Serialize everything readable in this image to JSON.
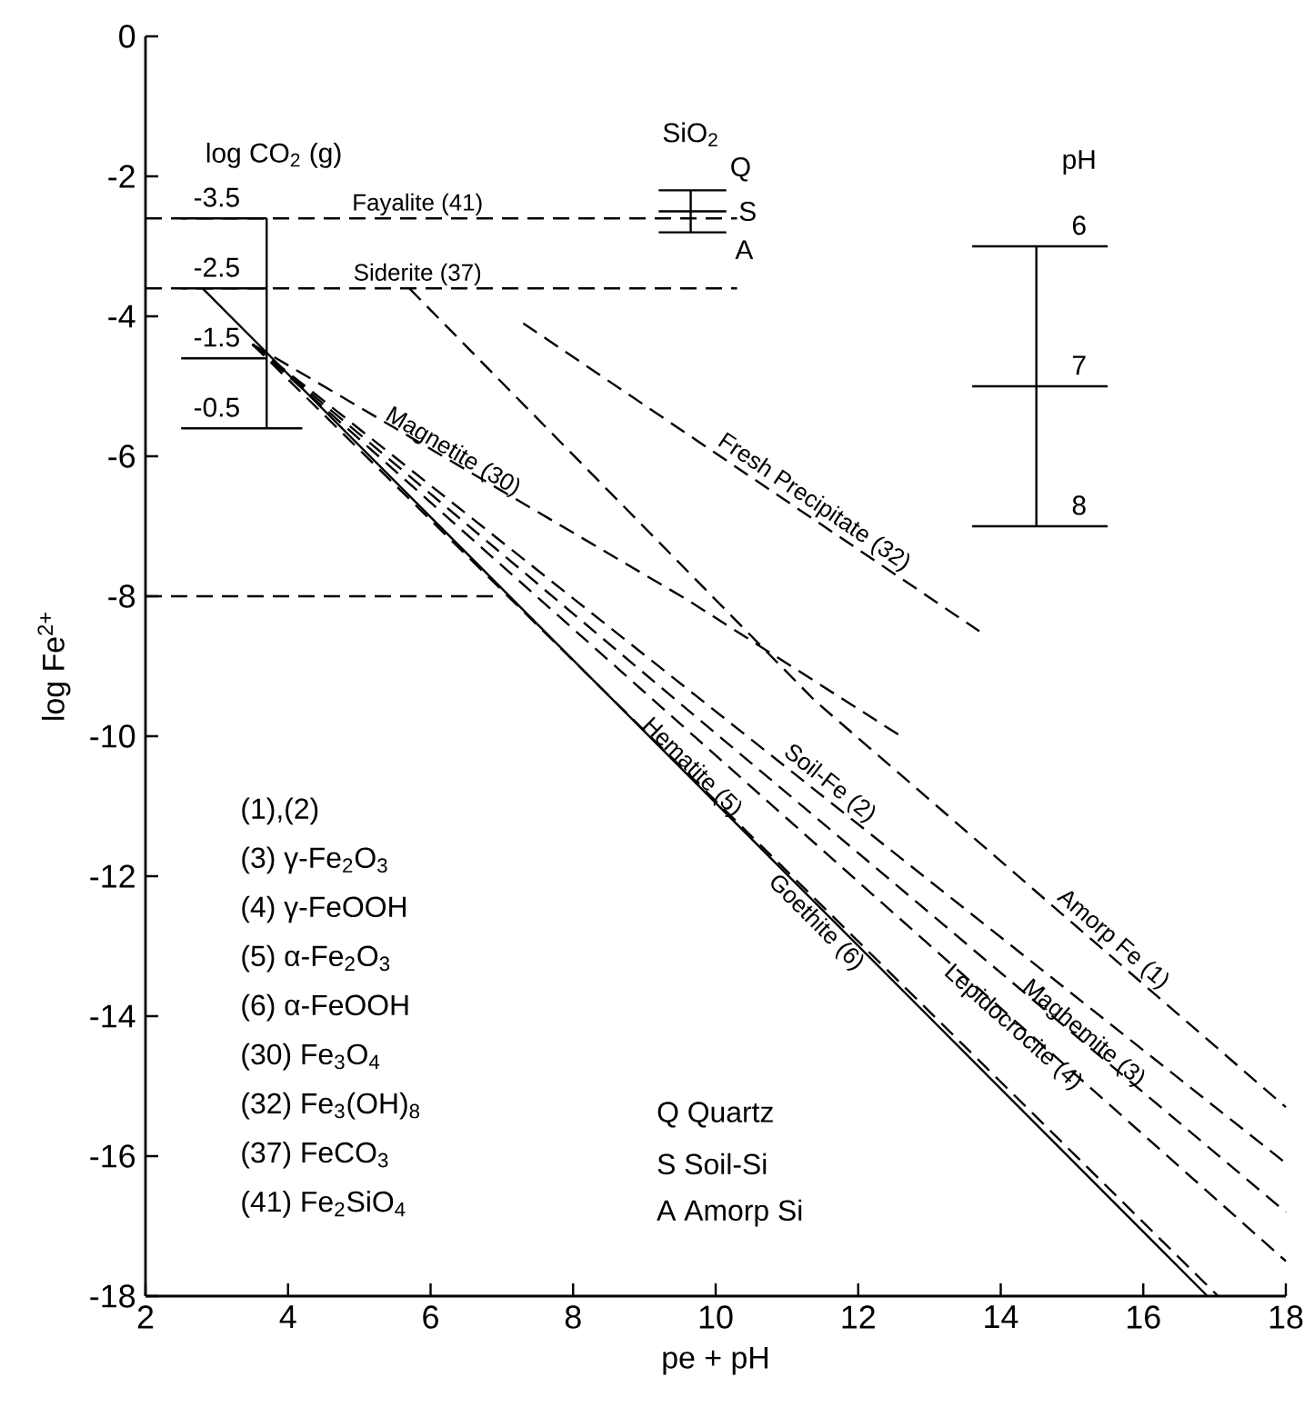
{
  "chart_data": {
    "type": "line",
    "xlabel": "pe + pH",
    "ylabel": "log Fe$^{2+}$",
    "xlim": [
      2,
      18
    ],
    "ylim": [
      -18,
      0
    ],
    "xticks": [
      2,
      4,
      6,
      8,
      10,
      12,
      14,
      16,
      18
    ],
    "yticks": [
      0,
      -2,
      -4,
      -6,
      -8,
      -10,
      -12,
      -14,
      -16,
      -18
    ],
    "series": [
      {
        "name": "Fayalite (41)",
        "color": "#000000",
        "line_style": "dashed",
        "x": [
          2,
          10.3
        ],
        "values": [
          -2.6,
          -2.6
        ]
      },
      {
        "name": "Siderite (37)",
        "color": "#000000",
        "line_style": "dashed",
        "x": [
          2,
          10.3
        ],
        "values": [
          -3.6,
          -3.6
        ]
      },
      {
        "name": "Fresh Precipitate (32)",
        "color": "#000000",
        "line_style": "dashed",
        "x": [
          7.3,
          13.7
        ],
        "values": [
          -4.1,
          -8.5
        ]
      },
      {
        "name": "Magnetite (30)",
        "color": "#000000",
        "line_style": "dashed",
        "x": [
          3.5,
          9.6,
          12.6
        ],
        "values": [
          -4.4,
          -8.05,
          -10.0
        ]
      },
      {
        "name": "Hematite (5)",
        "color": "#000000",
        "line_style": "dashed",
        "x": [
          3.5,
          17.05
        ],
        "values": [
          -4.4,
          -18
        ]
      },
      {
        "name": "Goethite (6)",
        "color": "#000000",
        "line_style": "solid",
        "x": [
          2.8,
          16.9
        ],
        "values": [
          -3.6,
          -18
        ]
      },
      {
        "name": "Lepidocrocite (4)",
        "color": "#000000",
        "line_style": "dashed",
        "x": [
          3.5,
          18
        ],
        "values": [
          -4.4,
          -17.5
        ]
      },
      {
        "name": "Maghemite (3)",
        "color": "#000000",
        "line_style": "dashed",
        "x": [
          3.5,
          18
        ],
        "values": [
          -4.4,
          -16.8
        ]
      },
      {
        "name": "Soil-Fe (2)",
        "color": "#000000",
        "line_style": "dashed",
        "x": [
          3.5,
          18
        ],
        "values": [
          -4.4,
          -16.1
        ]
      },
      {
        "name": "Amorp Fe (1)",
        "color": "#000000",
        "line_style": "dashed",
        "x": [
          5.7,
          11.4,
          18
        ],
        "values": [
          -3.6,
          -9.5,
          -15.3
        ]
      },
      {
        "color": "#000000",
        "line_style": "dashed",
        "x": [
          2,
          6.9
        ],
        "values": [
          -8,
          -8
        ]
      },
      {
        "color": "#000000",
        "line_style": "solid",
        "x": [
          3.7,
          3.7
        ],
        "values": [
          -2.6,
          -5.6
        ]
      },
      {
        "color": "#000000",
        "line_style": "solid",
        "x": [
          2.5,
          3.7
        ],
        "values": [
          -2.6,
          -2.6
        ]
      },
      {
        "color": "#000000",
        "line_style": "solid",
        "x": [
          2.5,
          3.7
        ],
        "values": [
          -3.6,
          -3.6
        ]
      },
      {
        "color": "#000000",
        "line_style": "solid",
        "x": [
          2.5,
          3.7
        ],
        "values": [
          -4.6,
          -4.6
        ]
      },
      {
        "color": "#000000",
        "line_style": "solid",
        "x": [
          2.5,
          4.2
        ],
        "values": [
          -5.6,
          -5.6
        ]
      },
      {
        "color": "#000000",
        "line_style": "solid",
        "x": [
          9.65,
          9.65
        ],
        "values": [
          -2.2,
          -2.8
        ]
      },
      {
        "color": "#000000",
        "line_style": "solid",
        "x": [
          9.2,
          10.15
        ],
        "values": [
          -2.2,
          -2.2
        ]
      },
      {
        "color": "#000000",
        "line_style": "solid",
        "x": [
          9.2,
          10.15
        ],
        "values": [
          -2.5,
          -2.5
        ]
      },
      {
        "color": "#000000",
        "line_style": "solid",
        "x": [
          9.2,
          10.15
        ],
        "values": [
          -2.8,
          -2.8
        ]
      },
      {
        "color": "#000000",
        "line_style": "solid",
        "x": [
          14.5,
          14.5
        ],
        "values": [
          -3,
          -7
        ]
      },
      {
        "color": "#000000",
        "line_style": "solid",
        "x": [
          13.6,
          15.5
        ],
        "values": [
          -3,
          -3
        ]
      },
      {
        "color": "#000000",
        "line_style": "solid",
        "x": [
          13.6,
          15.5
        ],
        "values": [
          -5,
          -5
        ]
      },
      {
        "color": "#000000",
        "line_style": "solid",
        "x": [
          13.6,
          15.5
        ],
        "values": [
          -7,
          -7
        ]
      }
    ],
    "annotations": [
      "log CO$_{2}$ (g)",
      "-3.5",
      "-2.5",
      "-1.5",
      "-0.5",
      "SiO$_{2}$",
      "Q",
      "S",
      "A",
      "pH",
      "6",
      "7",
      "8",
      "(1),(2)",
      "(3) γ-Fe$_{2}$O$_{3}$",
      "(4) γ-FeOOH",
      "(5) α-Fe$_{2}$O$_{3}$",
      "(6) α-FeOOH",
      "(30) Fe$_{3}$O$_{4}$",
      "(32) Fe$_{3}$(OH)$_{8}$",
      "(37) FeCO$_{3}$",
      "(41) Fe$_{2}$SiO$_{4}$",
      "Q  Quartz",
      "S  Soil-Si",
      "A  Amorp Si"
    ]
  }
}
